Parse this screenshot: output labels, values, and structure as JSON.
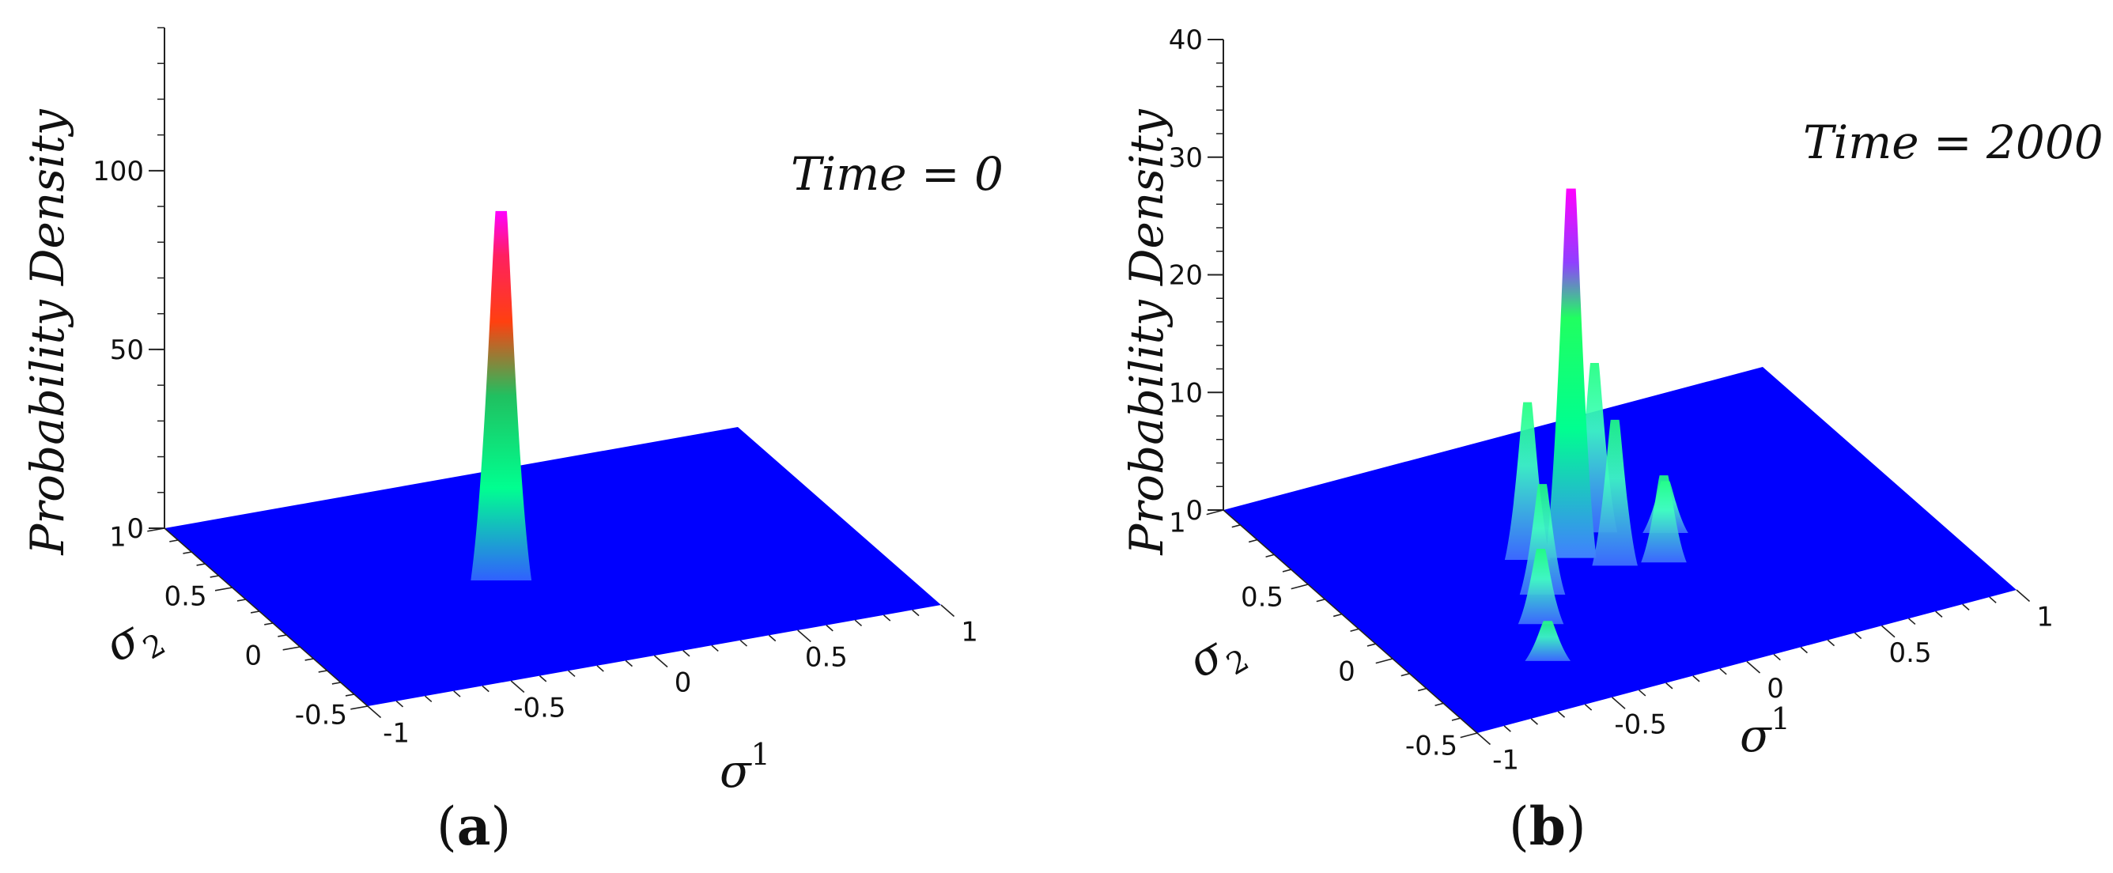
{
  "chart_data": [
    {
      "type": "surface3d",
      "panel_label": "a",
      "annotation": "Time = 0",
      "zlabel": "Probability Density",
      "xlabel": "σ¹",
      "ylabel": "σ₂",
      "xlim": [
        -1,
        1
      ],
      "ylim": [
        -0.5,
        1
      ],
      "zlim": [
        0,
        140
      ],
      "x_ticks": [
        "-1",
        "-0.5",
        "0",
        "0.5",
        "1"
      ],
      "y_ticks": [
        "-0.5",
        "0",
        "0.5",
        "1"
      ],
      "z_ticks": [
        "0",
        "50",
        "100"
      ],
      "colormap": [
        "#0000ff",
        "#00ff80",
        "#ff3300",
        "#ff00ff"
      ],
      "peaks": [
        {
          "x": -0.18,
          "y": 0.25,
          "z": 102
        }
      ]
    },
    {
      "type": "surface3d",
      "panel_label": "b",
      "annotation": "Time = 2000",
      "zlabel": "Probability Density",
      "xlabel": "σ¹",
      "ylabel": "σ₂",
      "xlim": [
        -1,
        1
      ],
      "ylim": [
        -0.5,
        1
      ],
      "zlim": [
        0,
        40
      ],
      "x_ticks": [
        "-1",
        "-0.5",
        "0",
        "0.5",
        "1"
      ],
      "y_ticks": [
        "-0.5",
        "0",
        "0.5",
        "1"
      ],
      "z_ticks": [
        "0",
        "10",
        "20",
        "30",
        "40"
      ],
      "colormap": [
        "#0000ff",
        "#00ff80",
        "#8040ff",
        "#ff00ff"
      ],
      "peaks": [
        {
          "x": -0.15,
          "y": 0.3,
          "z": 31
        },
        {
          "x": -0.28,
          "y": 0.35,
          "z": 13
        },
        {
          "x": 0.0,
          "y": 0.4,
          "z": 14
        },
        {
          "x": -0.05,
          "y": 0.2,
          "z": 12
        },
        {
          "x": -0.35,
          "y": 0.15,
          "z": 9
        },
        {
          "x": 0.1,
          "y": 0.15,
          "z": 7
        },
        {
          "x": -0.45,
          "y": 0.0,
          "z": 6
        },
        {
          "x": -0.55,
          "y": -0.2,
          "z": 3
        },
        {
          "x": 0.2,
          "y": 0.3,
          "z": 4
        }
      ]
    }
  ]
}
